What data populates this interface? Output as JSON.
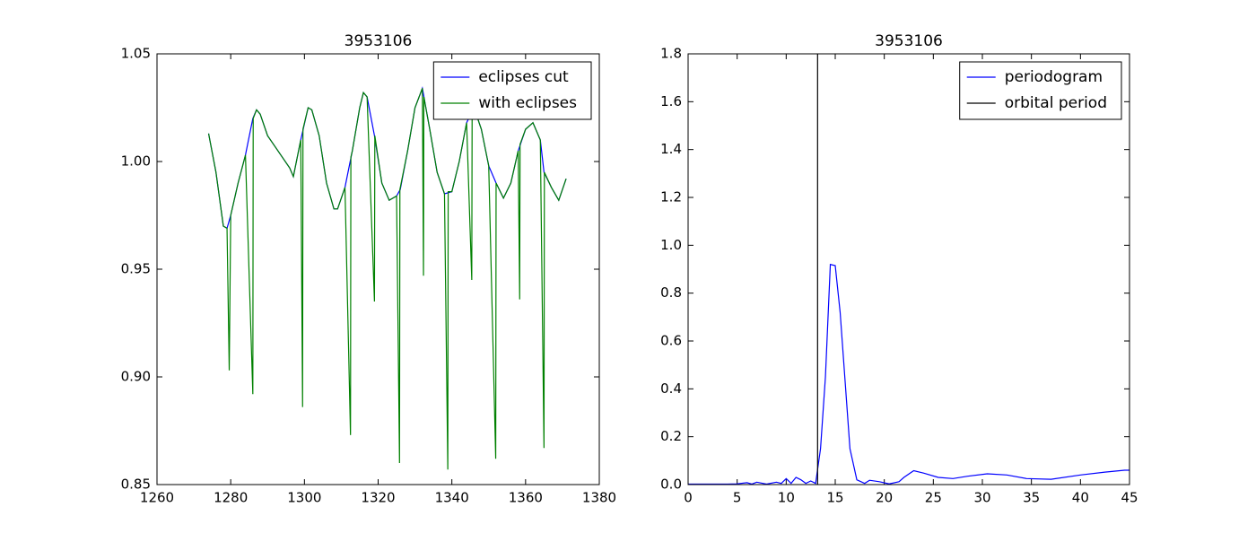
{
  "chart_data": [
    {
      "type": "line",
      "title": "3953106",
      "xlim": [
        1260,
        1380
      ],
      "xticks": [
        1260,
        1280,
        1300,
        1320,
        1340,
        1360,
        1380
      ],
      "ylim": [
        0.85,
        1.05
      ],
      "yticks": [
        0.85,
        {
          "value": 0.9,
          "label": "0.90"
        },
        0.95,
        {
          "value": 1.0,
          "label": "1.00"
        },
        1.05
      ],
      "legend": "upper right",
      "series": [
        {
          "name": "eclipses cut",
          "color": "#0000ff",
          "x": [
            1274,
            1276,
            1278,
            1279,
            1280,
            1282,
            1284,
            1286,
            1287,
            1288,
            1290,
            1292,
            1294,
            1296,
            1297,
            1299,
            1301,
            1302,
            1304,
            1306,
            1308,
            1309,
            1311,
            1313,
            1315,
            1316,
            1317,
            1319,
            1321,
            1323,
            1325,
            1326,
            1328,
            1330,
            1332,
            1334,
            1336,
            1338,
            1340,
            1342,
            1344,
            1346,
            1348,
            1350,
            1352,
            1354,
            1356,
            1358,
            1360,
            1362,
            1364,
            1365,
            1367,
            1369,
            1371
          ],
          "values": [
            1.013,
            0.995,
            0.97,
            0.969,
            0.975,
            0.99,
            1.003,
            1.02,
            1.024,
            1.022,
            1.012,
            1.007,
            1.002,
            0.997,
            0.993,
            1.01,
            1.025,
            1.024,
            1.012,
            0.99,
            0.978,
            0.978,
            0.988,
            1.005,
            1.025,
            1.032,
            1.03,
            1.012,
            0.99,
            0.982,
            0.984,
            0.987,
            1.005,
            1.025,
            1.034,
            1.015,
            0.995,
            0.985,
            0.986,
            1.0,
            1.018,
            1.025,
            1.015,
            0.998,
            0.99,
            0.983,
            0.99,
            1.005,
            1.015,
            1.018,
            1.01,
            0.995,
            0.988,
            0.982,
            0.992
          ]
        },
        {
          "name": "with eclipses",
          "color": "#008000",
          "x": [
            1274,
            1276,
            1278,
            1279,
            1279.6,
            1280,
            1282,
            1284,
            1286,
            1286.1,
            1287,
            1288,
            1290,
            1292,
            1294,
            1296,
            1297,
            1299,
            1299.5,
            1299.6,
            1301,
            1302,
            1304,
            1306,
            1308,
            1309,
            1311,
            1312.5,
            1312.6,
            1313,
            1315,
            1316,
            1317,
            1319,
            1319.1,
            1321,
            1323,
            1325,
            1325.8,
            1325.9,
            1328,
            1330,
            1332,
            1332.3,
            1332.4,
            1334,
            1336,
            1338,
            1338.9,
            1339,
            1340,
            1342,
            1344,
            1345.4,
            1345.5,
            1346,
            1348,
            1350,
            1351.9,
            1352,
            1354,
            1356,
            1358,
            1358.4,
            1358.5,
            1360,
            1362,
            1364,
            1365,
            1365.1,
            1367,
            1369,
            1371
          ],
          "values": [
            1.013,
            0.995,
            0.97,
            0.969,
            0.903,
            0.975,
            0.99,
            1.003,
            0.892,
            1.02,
            1.024,
            1.022,
            1.012,
            1.007,
            1.002,
            0.997,
            0.993,
            1.01,
            0.886,
            1.015,
            1.025,
            1.024,
            1.012,
            0.99,
            0.978,
            0.978,
            0.988,
            0.873,
            1.002,
            1.005,
            1.025,
            1.032,
            1.03,
            0.935,
            1.012,
            0.99,
            0.982,
            0.984,
            0.86,
            0.987,
            1.005,
            1.025,
            1.034,
            0.947,
            1.03,
            1.015,
            0.995,
            0.985,
            0.857,
            0.986,
            0.986,
            1.0,
            1.018,
            0.945,
            1.024,
            1.025,
            1.015,
            0.998,
            0.862,
            0.99,
            0.983,
            0.99,
            1.005,
            0.936,
            1.008,
            1.015,
            1.018,
            1.01,
            0.867,
            0.995,
            0.988,
            0.982,
            0.992
          ]
        }
      ]
    },
    {
      "type": "line",
      "title": "3953106",
      "xlim": [
        0,
        45
      ],
      "xticks": [
        0,
        5,
        10,
        15,
        20,
        25,
        30,
        35,
        40,
        45
      ],
      "ylim": [
        0,
        1.8
      ],
      "yticks": [
        {
          "value": 0,
          "label": "0.0"
        },
        0.2,
        0.4,
        0.6,
        0.8,
        {
          "value": 1.0,
          "label": "1.0"
        },
        1.2,
        1.4,
        1.6,
        1.8
      ],
      "legend": "upper right",
      "series": [
        {
          "name": "periodogram",
          "color": "#0000ff",
          "x": [
            0,
            2,
            4,
            5,
            6,
            6.5,
            7,
            8,
            9,
            9.5,
            10,
            10.5,
            11,
            11.5,
            12,
            12.5,
            13,
            13.5,
            14,
            14.5,
            15,
            15.5,
            16.5,
            17.2,
            18,
            18.5,
            19.5,
            20.5,
            21.5,
            22,
            23,
            24,
            25.5,
            27,
            28.5,
            30.5,
            32.5,
            34.5,
            37,
            40,
            42.5,
            44.5,
            45
          ],
          "values": [
            0.002,
            0.002,
            0.002,
            0.003,
            0.008,
            0.002,
            0.01,
            0.002,
            0.01,
            0.005,
            0.025,
            0.005,
            0.03,
            0.02,
            0.005,
            0.015,
            0.005,
            0.15,
            0.45,
            0.92,
            0.915,
            0.72,
            0.15,
            0.02,
            0.005,
            0.018,
            0.012,
            0.003,
            0.012,
            0.03,
            0.058,
            0.048,
            0.03,
            0.025,
            0.035,
            0.045,
            0.04,
            0.025,
            0.022,
            0.04,
            0.052,
            0.06,
            0.06
          ]
        }
      ],
      "vline": {
        "name": "orbital period",
        "color": "#000000",
        "x": 13.2
      }
    }
  ]
}
